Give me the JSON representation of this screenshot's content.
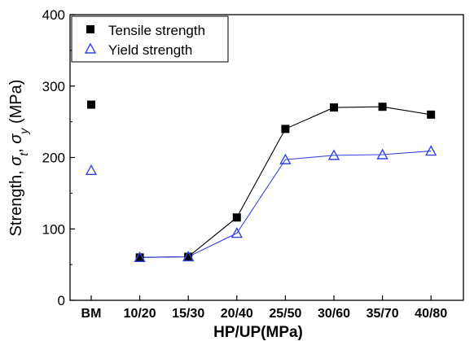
{
  "chart_data": {
    "type": "line",
    "categories": [
      "BM",
      "10/20",
      "15/30",
      "20/40",
      "25/50",
      "30/60",
      "35/70",
      "40/80"
    ],
    "series": [
      {
        "name": "Tensile strength",
        "marker": "filled-square",
        "color": "#000000",
        "values": [
          274,
          60,
          61,
          116,
          240,
          270,
          271,
          260
        ],
        "connected_from_index": 1
      },
      {
        "name": "Yield strength",
        "marker": "open-triangle",
        "color": "#3344dd",
        "values": [
          182,
          60,
          61,
          94,
          197,
          203,
          204,
          209
        ],
        "connected_from_index": 1
      }
    ],
    "xlabel": "HP/UP(MPa)",
    "ylabel": {
      "prefix": "Strength, ",
      "sym1": "σ",
      "sub1": "t",
      "sep": ", ",
      "sym2": "σ",
      "sub2": "y",
      "suffix": " (MPa)"
    },
    "ylim": [
      0,
      400
    ],
    "yticks": [
      "0",
      "100",
      "200",
      "300",
      "400"
    ],
    "legend_position": "top-left",
    "grid": false
  }
}
